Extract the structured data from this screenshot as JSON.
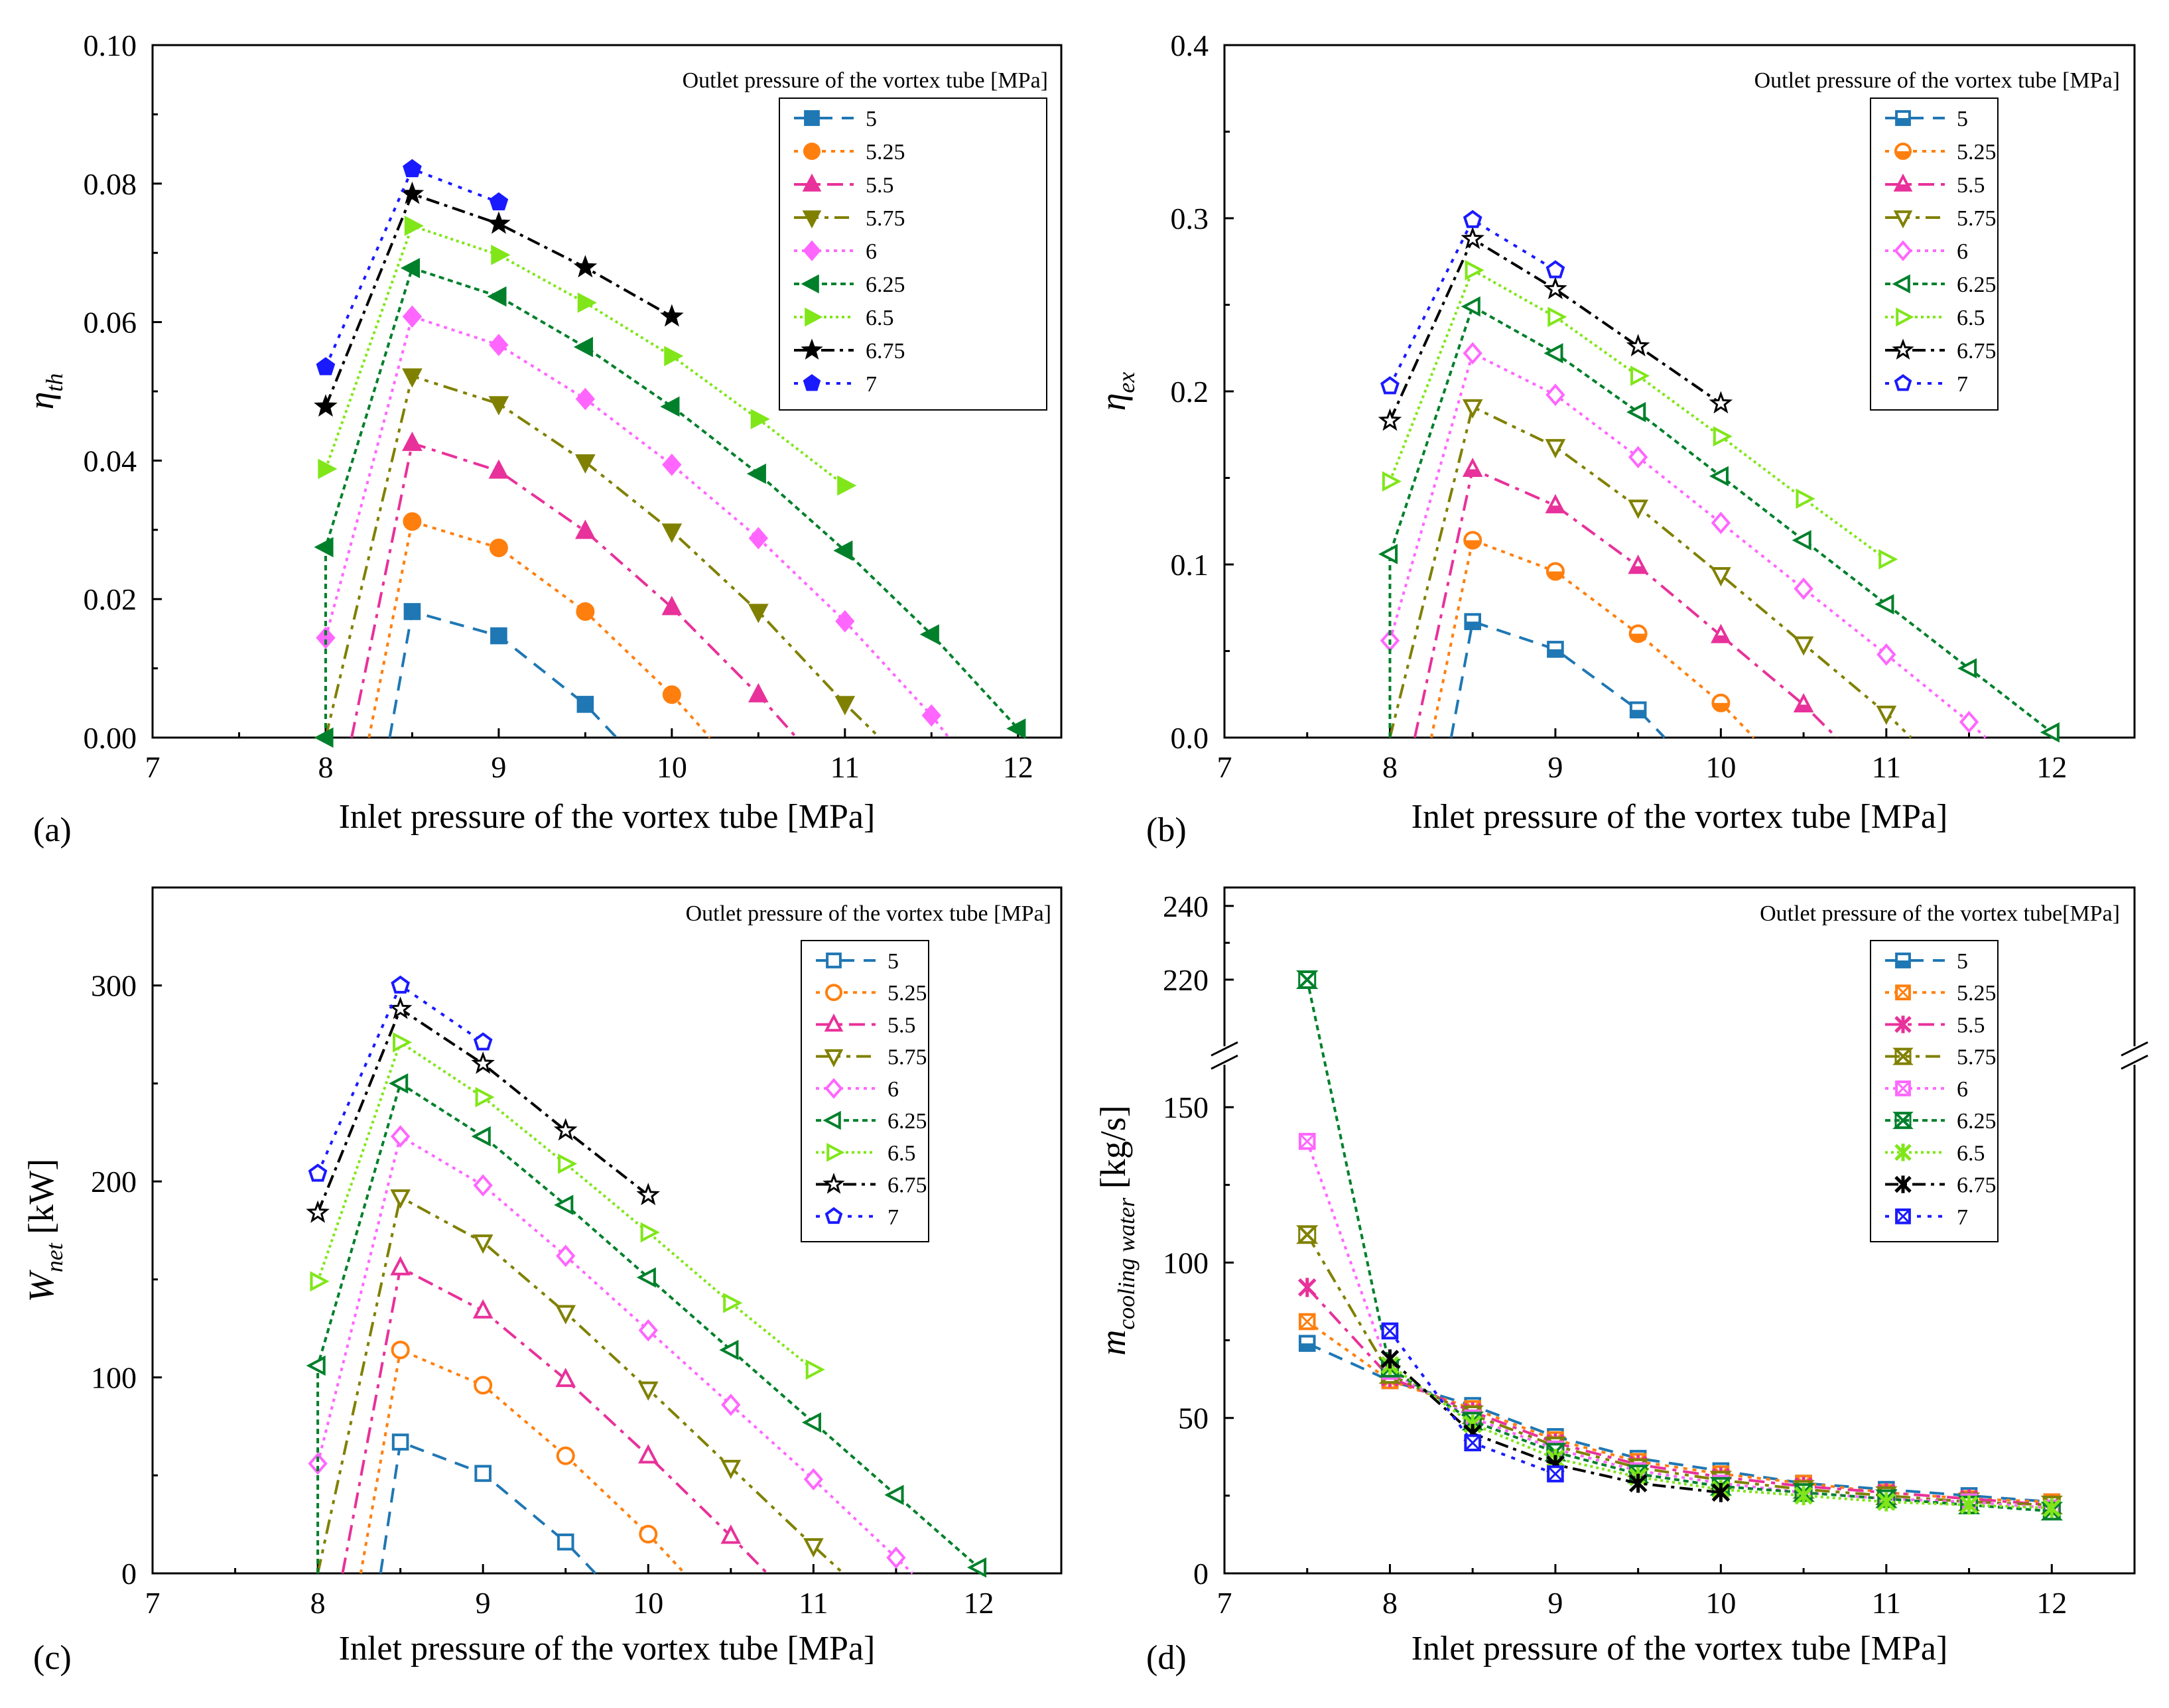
{
  "figure": {
    "panel_labels": [
      "(a)",
      "(b)",
      "(c)",
      "(d)"
    ]
  },
  "series_style": {
    "names": [
      "5",
      "5.25",
      "5.5",
      "5.75",
      "6",
      "6.25",
      "6.5",
      "6.75",
      "7"
    ],
    "colors": [
      "#1f77b4",
      "#ff7f0e",
      "#e8319a",
      "#808000",
      "#ff66ff",
      "#00802b",
      "#80e619",
      "#000000",
      "#1a1aff"
    ],
    "dashes": [
      "22,14",
      "6,8",
      "24,10,6,10",
      "22,9,6,9,6,9",
      "5,7",
      "8,6",
      "4,5",
      "20,8,5,8",
      "6,10"
    ]
  },
  "chart_data": [
    {
      "id": "a",
      "type": "line",
      "xlabel": "Inlet pressure of the vortex tube [MPa]",
      "ylabel_main": "η",
      "ylabel_sub": "th",
      "xlim": [
        7,
        12.25
      ],
      "ylim": [
        0,
        0.1
      ],
      "xticks": [
        "7",
        "8",
        "9",
        "10",
        "11",
        "12"
      ],
      "yticks": [
        "0.00",
        "0.02",
        "0.04",
        "0.06",
        "0.08",
        "0.10"
      ],
      "legend_title": "Outlet pressure of the vortex tube [MPa]",
      "markers": [
        "square",
        "circle",
        "triangle",
        "invtriangle",
        "diamond",
        "lefttriangle",
        "righttriangle",
        "star",
        "pentagon"
      ],
      "filled": true,
      "series": [
        {
          "name": "5",
          "x": [
            8.5,
            9,
            9.5
          ],
          "y": [
            0.0182,
            0.0147,
            0.0048
          ],
          "start": [
            8.37,
            0
          ],
          "end": [
            9.68,
            0
          ]
        },
        {
          "name": "5.25",
          "x": [
            8.5,
            9,
            9.5,
            10
          ],
          "y": [
            0.0312,
            0.0274,
            0.0182,
            0.0062
          ],
          "start": [
            8.25,
            0
          ],
          "end": [
            10.22,
            0
          ]
        },
        {
          "name": "5.5",
          "x": [
            8.5,
            9,
            9.5,
            10,
            10.5
          ],
          "y": [
            0.0425,
            0.0385,
            0.0298,
            0.0188,
            0.0062
          ],
          "start": [
            8.15,
            0
          ],
          "end": [
            10.72,
            0
          ]
        },
        {
          "name": "5.75",
          "x": [
            8.5,
            9,
            9.5,
            10,
            10.5,
            11
          ],
          "y": [
            0.0522,
            0.0482,
            0.0398,
            0.0298,
            0.0182,
            0.0049
          ],
          "start": [
            8.0,
            0
          ],
          "end": [
            11.2,
            0
          ]
        },
        {
          "name": "6",
          "x": [
            8,
            8.5,
            9,
            9.5,
            10,
            10.5,
            11,
            11.5
          ],
          "y": [
            0.0144,
            0.0608,
            0.0567,
            0.0489,
            0.0394,
            0.0288,
            0.0168,
            0.0032
          ],
          "start": null,
          "end": [
            11.6,
            0
          ]
        },
        {
          "name": "6.25",
          "x": [
            8,
            8,
            8.5,
            9,
            9.5,
            10,
            10.5,
            11,
            11.5,
            12
          ],
          "y": [
            0.0,
            0.0275,
            0.0678,
            0.0637,
            0.0564,
            0.0478,
            0.0381,
            0.027,
            0.0149,
            0.0013
          ],
          "start": null,
          "end": null
        },
        {
          "name": "6.5",
          "x": [
            8,
            8.5,
            9,
            9.5,
            10,
            10.5,
            11
          ],
          "y": [
            0.0388,
            0.0739,
            0.0697,
            0.0628,
            0.0551,
            0.046,
            0.0364
          ],
          "start": null,
          "end": null
        },
        {
          "name": "6.75",
          "x": [
            8,
            8.5,
            9,
            9.5,
            10
          ],
          "y": [
            0.0478,
            0.0785,
            0.0742,
            0.0679,
            0.0608
          ],
          "start": null,
          "end": null
        },
        {
          "name": "7",
          "x": [
            8,
            8.5,
            9
          ],
          "y": [
            0.0535,
            0.0821,
            0.0773
          ],
          "start": null,
          "end": null
        }
      ]
    },
    {
      "id": "b",
      "type": "line",
      "xlabel": "Inlet pressure of the vortex tube [MPa]",
      "ylabel_main": "η",
      "ylabel_sub": "ex",
      "xlim": [
        7,
        12.5
      ],
      "ylim": [
        0,
        0.4
      ],
      "xticks": [
        "7",
        "8",
        "9",
        "10",
        "11",
        "12"
      ],
      "yticks": [
        "0.0",
        "0.1",
        "0.2",
        "0.3",
        "0.4"
      ],
      "legend_title": "Outlet pressure of the vortex tube [MPa]",
      "markers": [
        "halfsquare",
        "halfcircle",
        "halftriangle",
        "invtriangle",
        "diamond",
        "lefttriangle",
        "righttriangle",
        "star",
        "pentagon"
      ],
      "filled": false,
      "series": [
        {
          "name": "5",
          "x": [
            8.5,
            9,
            9.5
          ],
          "y": [
            0.067,
            0.051,
            0.016
          ],
          "start": [
            8.37,
            0
          ],
          "end": [
            9.66,
            0
          ]
        },
        {
          "name": "5.25",
          "x": [
            8.5,
            9,
            9.5,
            10
          ],
          "y": [
            0.114,
            0.096,
            0.06,
            0.02
          ],
          "start": [
            8.25,
            0
          ],
          "end": [
            10.2,
            0
          ]
        },
        {
          "name": "5.5",
          "x": [
            8.5,
            9,
            9.5,
            10,
            10.5
          ],
          "y": [
            0.155,
            0.134,
            0.099,
            0.059,
            0.019
          ],
          "start": [
            8.15,
            0
          ],
          "end": [
            10.7,
            0
          ]
        },
        {
          "name": "5.75",
          "x": [
            8.5,
            9,
            9.5,
            10,
            10.5,
            11
          ],
          "y": [
            0.191,
            0.168,
            0.133,
            0.094,
            0.054,
            0.014
          ],
          "start": [
            8.0,
            0
          ],
          "end": [
            11.15,
            0
          ]
        },
        {
          "name": "6",
          "x": [
            8,
            8.5,
            9,
            9.5,
            10,
            10.5,
            11,
            11.5
          ],
          "y": [
            0.056,
            0.222,
            0.198,
            0.162,
            0.124,
            0.086,
            0.048,
            0.009
          ],
          "start": null,
          "end": [
            11.6,
            0
          ]
        },
        {
          "name": "6.25",
          "x": [
            8,
            8,
            8.5,
            9,
            9.5,
            10,
            10.5,
            11,
            11.5,
            12
          ],
          "y": [
            0.0,
            0.106,
            0.249,
            0.222,
            0.188,
            0.151,
            0.114,
            0.077,
            0.04,
            0.003
          ],
          "start": null,
          "end": null
        },
        {
          "name": "6.5",
          "x": [
            8,
            8.5,
            9,
            9.5,
            10,
            10.5,
            11
          ],
          "y": [
            0.148,
            0.27,
            0.243,
            0.209,
            0.174,
            0.138,
            0.103
          ],
          "start": null,
          "end": null
        },
        {
          "name": "6.75",
          "x": [
            8,
            8.5,
            9,
            9.5,
            10
          ],
          "y": [
            0.183,
            0.288,
            0.259,
            0.226,
            0.193
          ],
          "start": null,
          "end": null
        },
        {
          "name": "7",
          "x": [
            8,
            8.5,
            9
          ],
          "y": [
            0.203,
            0.299,
            0.27
          ],
          "start": null,
          "end": null
        }
      ]
    },
    {
      "id": "c",
      "type": "line",
      "xlabel": "Inlet pressure of the vortex tube [MPa]",
      "ylabel_main": "W",
      "ylabel_sub": "net",
      "ylabel_unit": " [kW]",
      "xlim": [
        7,
        12.5
      ],
      "ylim": [
        0,
        350
      ],
      "xticks": [
        "7",
        "8",
        "9",
        "10",
        "11",
        "12"
      ],
      "yticks": [
        "0",
        "100",
        "200",
        "300"
      ],
      "ytick_values": [
        0,
        100,
        200,
        300
      ],
      "legend_title": "Outlet pressure of the vortex tube [MPa]",
      "markers": [
        "square",
        "circle",
        "triangle",
        "invtriangle",
        "diamond",
        "lefttriangle",
        "righttriangle",
        "star",
        "pentagon"
      ],
      "filled": false,
      "series": [
        {
          "name": "5",
          "x": [
            8.5,
            9,
            9.5
          ],
          "y": [
            67,
            51,
            16
          ],
          "start": [
            8.38,
            0
          ],
          "end": [
            9.68,
            0
          ]
        },
        {
          "name": "5.25",
          "x": [
            8.5,
            9,
            9.5,
            10
          ],
          "y": [
            114,
            96,
            60,
            20
          ],
          "start": [
            8.26,
            0
          ],
          "end": [
            10.22,
            0
          ]
        },
        {
          "name": "5.5",
          "x": [
            8.5,
            9,
            9.5,
            10,
            10.5
          ],
          "y": [
            156,
            134,
            99,
            60,
            19
          ],
          "start": [
            8.15,
            0
          ],
          "end": [
            10.72,
            0
          ]
        },
        {
          "name": "5.75",
          "x": [
            8.5,
            9,
            9.5,
            10,
            10.5,
            11
          ],
          "y": [
            192,
            169,
            133,
            94,
            54,
            14
          ],
          "start": [
            8.0,
            0
          ],
          "end": [
            11.18,
            0
          ]
        },
        {
          "name": "6",
          "x": [
            8,
            8.5,
            9,
            9.5,
            10,
            10.5,
            11,
            11.5
          ],
          "y": [
            56,
            223,
            198,
            162,
            124,
            86,
            48,
            8
          ],
          "start": null,
          "end": [
            11.6,
            0
          ]
        },
        {
          "name": "6.25",
          "x": [
            8,
            8,
            8.5,
            9,
            9.5,
            10,
            10.5,
            11,
            11.5,
            12
          ],
          "y": [
            0,
            106,
            250,
            223,
            188,
            151,
            114,
            77,
            40,
            3
          ],
          "start": null,
          "end": null
        },
        {
          "name": "6.5",
          "x": [
            8,
            8.5,
            9,
            9.5,
            10,
            10.5,
            11
          ],
          "y": [
            149,
            271,
            243,
            209,
            174,
            138,
            104
          ],
          "start": null,
          "end": null
        },
        {
          "name": "6.75",
          "x": [
            8,
            8.5,
            9,
            9.5,
            10
          ],
          "y": [
            184,
            288,
            260,
            226,
            193
          ],
          "start": null,
          "end": null
        },
        {
          "name": "7",
          "x": [
            8,
            8.5,
            9
          ],
          "y": [
            204,
            300,
            271
          ],
          "start": null,
          "end": null
        }
      ]
    },
    {
      "id": "d",
      "type": "line",
      "xlabel": "Inlet pressure of the vortex tube [MPa]",
      "ylabel_main": "m",
      "ylabel_sub": "cooling water",
      "ylabel_unit": " [kg/s]",
      "xlim": [
        7,
        12.5
      ],
      "ylim": [
        0,
        160
      ],
      "ylim_upper": [
        205,
        245
      ],
      "axis_break": true,
      "xticks": [
        "7",
        "8",
        "9",
        "10",
        "11",
        "12"
      ],
      "yticks": [
        "0",
        "50",
        "100",
        "150",
        "220",
        "240"
      ],
      "ytick_values": [
        0,
        50,
        100,
        150,
        220,
        240
      ],
      "legend_title": "Outlet pressure of the vortex tube[MPa]",
      "markers": [
        "halfsquare",
        "xsquare",
        "asterisk",
        "hourglass",
        "xsquare",
        "hourglass",
        "asterisk",
        "asterisk",
        "xsquare"
      ],
      "filled": false,
      "series": [
        {
          "name": "5",
          "x": [
            7.5,
            8,
            8.5,
            9,
            9.5,
            10,
            10.5,
            11,
            11.5,
            12
          ],
          "y": [
            74,
            62,
            54,
            44,
            37,
            33,
            29,
            27,
            25,
            23
          ]
        },
        {
          "name": "5.25",
          "x": [
            7.5,
            8,
            8.5,
            9,
            9.5,
            10,
            10.5,
            11,
            11.5,
            12
          ],
          "y": [
            81,
            62,
            53,
            43,
            36,
            32,
            29,
            26,
            24,
            23
          ]
        },
        {
          "name": "5.5",
          "x": [
            7.5,
            8,
            8.5,
            9,
            9.5,
            10,
            10.5,
            11,
            11.5,
            12
          ],
          "y": [
            92,
            63,
            52,
            42,
            35,
            31,
            28,
            26,
            24,
            22
          ]
        },
        {
          "name": "5.75",
          "x": [
            7.5,
            8,
            8.5,
            9,
            9.5,
            10,
            10.5,
            11,
            11.5,
            12
          ],
          "y": [
            109,
            64,
            51,
            41,
            34,
            30,
            27,
            25,
            23,
            22
          ]
        },
        {
          "name": "6",
          "x": [
            7.5,
            8,
            8.5,
            9,
            9.5,
            10,
            10.5,
            11,
            11.5,
            12
          ],
          "y": [
            139,
            65,
            50,
            40,
            33,
            29,
            26,
            24,
            23,
            21
          ]
        },
        {
          "name": "6.25",
          "x": [
            7.5,
            8,
            8.5,
            9,
            9.5,
            10,
            10.5,
            11,
            11.5,
            12
          ],
          "y": [
            220,
            66,
            49,
            39,
            32,
            28,
            26,
            24,
            22,
            20
          ]
        },
        {
          "name": "6.5",
          "x": [
            8,
            8.5,
            9,
            9.5,
            10,
            10.5,
            11,
            11.5,
            12
          ],
          "y": [
            67,
            48,
            37,
            31,
            27,
            25,
            23,
            22,
            21
          ]
        },
        {
          "name": "6.75",
          "x": [
            8,
            8.5,
            9,
            9.5,
            10
          ],
          "y": [
            69,
            45,
            35,
            29,
            26
          ]
        },
        {
          "name": "7",
          "x": [
            8,
            8.5,
            9
          ],
          "y": [
            78,
            42,
            32
          ]
        }
      ]
    }
  ]
}
